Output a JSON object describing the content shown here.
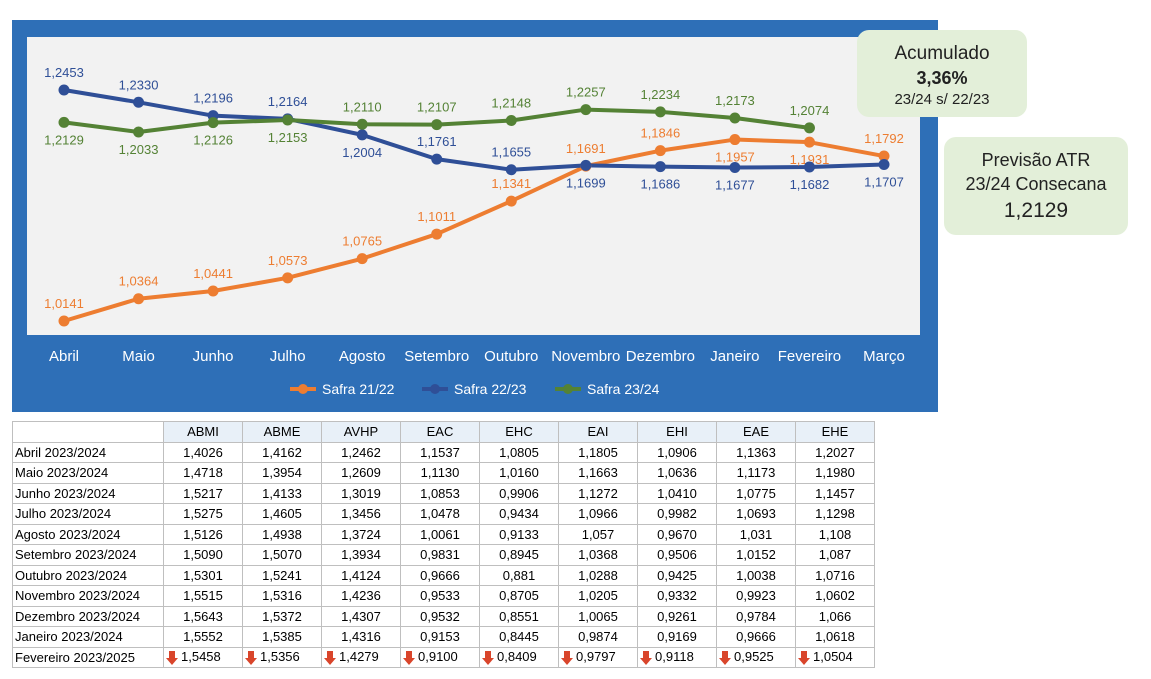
{
  "chart_data": {
    "type": "line",
    "categories": [
      "Abril",
      "Maio",
      "Junho",
      "Julho",
      "Agosto",
      "Setembro",
      "Outubro",
      "Novembro",
      "Dezembro",
      "Janeiro",
      "Fevereiro",
      "Março"
    ],
    "series": [
      {
        "name": "Safra 21/22",
        "color": "#ed7d31",
        "values": [
          1.0141,
          1.0364,
          1.0441,
          1.0573,
          1.0765,
          1.1011,
          1.1341,
          1.1691,
          1.1846,
          1.1957,
          1.1931,
          1.1792
        ],
        "value_labels": [
          "1,0141",
          "1,0364",
          "1,0441",
          "1,0573",
          "1,0765",
          "1,1011",
          "1,1341",
          "1,1691",
          "1,1846",
          "1,1957",
          "1,1931",
          "1,1792"
        ]
      },
      {
        "name": "Safra 22/23",
        "color": "#2f4f97",
        "values": [
          1.2453,
          1.233,
          1.2196,
          1.2164,
          1.2004,
          1.1761,
          1.1655,
          1.1699,
          1.1686,
          1.1677,
          1.1682,
          1.1707
        ],
        "value_labels": [
          "1,2453",
          "1,2330",
          "1,2196",
          "1,2164",
          "1,2004",
          "1,1761",
          "1,1655",
          "1,1699",
          "1,1686",
          "1,1677",
          "1,1682",
          "1,1707"
        ]
      },
      {
        "name": "Safra 23/24",
        "color": "#548235",
        "values": [
          1.2129,
          1.2033,
          1.2126,
          1.2153,
          1.211,
          1.2107,
          1.2148,
          1.2257,
          1.2234,
          1.2173,
          1.2074,
          null
        ],
        "value_labels": [
          "1,2129",
          "1,2033",
          "1,2126",
          "1,2153",
          "1,2110",
          "1,2107",
          "1,2148",
          "1,2257",
          "1,2234",
          "1,2173",
          "1,2074",
          null
        ]
      }
    ],
    "legend": "bottom"
  },
  "boxes": [
    {
      "title": "Acumulado",
      "value": "3,36%",
      "subtitle": "23/24 s/ 22/23"
    },
    {
      "title": "Previsão ATR",
      "subtitle": "23/24 Consecana",
      "value": "1,2129"
    }
  ],
  "table": {
    "columns": [
      "ABMI",
      "ABME",
      "AVHP",
      "EAC",
      "EHC",
      "EAI",
      "EHI",
      "EAE",
      "EHE"
    ],
    "rows": [
      {
        "label": "Abril 2023/2024",
        "values": [
          "1,4026",
          "1,4162",
          "1,2462",
          "1,1537",
          "1,0805",
          "1,1805",
          "1,0906",
          "1,1363",
          "1,2027"
        ]
      },
      {
        "label": "Maio 2023/2024",
        "values": [
          "1,4718",
          "1,3954",
          "1,2609",
          "1,1130",
          "1,0160",
          "1,1663",
          "1,0636",
          "1,1173",
          "1,1980"
        ]
      },
      {
        "label": "Junho 2023/2024",
        "values": [
          "1,5217",
          "1,4133",
          "1,3019",
          "1,0853",
          "0,9906",
          "1,1272",
          "1,0410",
          "1,0775",
          "1,1457"
        ]
      },
      {
        "label": "Julho 2023/2024",
        "values": [
          "1,5275",
          "1,4605",
          "1,3456",
          "1,0478",
          "0,9434",
          "1,0966",
          "0,9982",
          "1,0693",
          "1,1298"
        ]
      },
      {
        "label": "Agosto 2023/2024",
        "values": [
          "1,5126",
          "1,4938",
          "1,3724",
          "1,0061",
          "0,9133",
          "1,057",
          "0,9670",
          "1,031",
          "1,108"
        ]
      },
      {
        "label": "Setembro 2023/2024",
        "values": [
          "1,5090",
          "1,5070",
          "1,3934",
          "0,9831",
          "0,8945",
          "1,0368",
          "0,9506",
          "1,0152",
          "1,087"
        ]
      },
      {
        "label": "Outubro 2023/2024",
        "values": [
          "1,5301",
          "1,5241",
          "1,4124",
          "0,9666",
          "0,881",
          "1,0288",
          "0,9425",
          "1,0038",
          "1,0716"
        ]
      },
      {
        "label": "Novembro 2023/2024",
        "values": [
          "1,5515",
          "1,5316",
          "1,4236",
          "0,9533",
          "0,8705",
          "1,0205",
          "0,9332",
          "0,9923",
          "1,0602"
        ]
      },
      {
        "label": "Dezembro 2023/2024",
        "values": [
          "1,5643",
          "1,5372",
          "1,4307",
          "0,9532",
          "0,8551",
          "1,0065",
          "0,9261",
          "0,9784",
          "1,066"
        ]
      },
      {
        "label": "Janeiro 2023/2024",
        "values": [
          "1,5552",
          "1,5385",
          "1,4316",
          "0,9153",
          "0,8445",
          "0,9874",
          "0,9169",
          "0,9666",
          "1,0618"
        ]
      },
      {
        "label": "Fevereiro 2023/2025",
        "values": [
          "1,5458",
          "1,5356",
          "1,4279",
          "0,9100",
          "0,8409",
          "0,9797",
          "0,9118",
          "0,9525",
          "1,0504"
        ]
      }
    ]
  }
}
